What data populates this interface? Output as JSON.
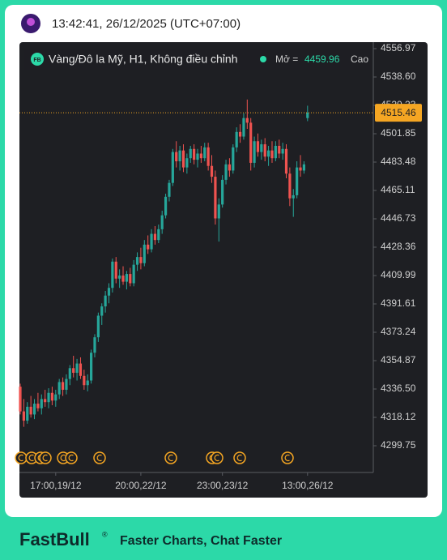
{
  "header": {
    "time": "13:42:41, 26/12/2025 (UTC+07:00)"
  },
  "legend": {
    "badge": "FB",
    "symbol": "Vàng/Đô la Mỹ, H1, Không điều chỉnh",
    "open_label": "Mở =",
    "open_value": "4459.96",
    "high_label": "Cao"
  },
  "footer": {
    "brand": "FastBull",
    "brand_mark": "®",
    "slogan": "Faster Charts, Chat Faster"
  },
  "chart_data": {
    "type": "candlestick",
    "up_color": "#26a69a",
    "down_color": "#ef5350",
    "last_color": "#f5a623",
    "categories": [
      null,
      null,
      null,
      null,
      null,
      null,
      null,
      null,
      null,
      null,
      "17:00,19/12",
      null,
      null,
      null,
      null,
      null,
      null,
      null,
      null,
      null,
      null,
      null,
      null,
      null,
      null,
      null,
      null,
      null,
      null,
      null,
      null,
      null,
      null,
      null,
      "20:00,22/12",
      null,
      null,
      null,
      null,
      null,
      null,
      null,
      null,
      null,
      null,
      null,
      null,
      null,
      null,
      null,
      null,
      null,
      null,
      null,
      null,
      null,
      null,
      "23:00,23/12",
      null,
      null,
      null,
      null,
      null,
      null,
      null,
      null,
      null,
      null,
      null,
      null,
      null,
      null,
      null,
      null,
      null,
      null,
      null,
      null,
      null,
      null,
      null,
      "13:00,26/12"
    ],
    "open": [
      4338,
      4322,
      4316,
      4325,
      4320,
      4327,
      4324,
      4330,
      4328,
      4334,
      4329,
      4333,
      4341,
      4336,
      4343,
      4350,
      4347,
      4353,
      4345,
      4339,
      4342,
      4360,
      4370,
      4384,
      4390,
      4397,
      4402,
      4419,
      4408,
      4410,
      4406,
      4411,
      4405,
      4417,
      4422,
      4418,
      4430,
      4427,
      4437,
      4433,
      4440,
      4449,
      4461,
      4470,
      4490,
      4484,
      4491,
      4480,
      4486,
      4492,
      4485,
      4489,
      4486,
      4493,
      4481,
      4474,
      4447,
      4456,
      4472,
      4482,
      4478,
      4493,
      4503,
      4500,
      4512,
      4509,
      4483,
      4497,
      4490,
      4495,
      4487,
      4491,
      4486,
      4494,
      4489,
      4492,
      4476,
      4460,
      4462,
      4480,
      4478,
      4512
    ],
    "high": [
      4340,
      4330,
      4328,
      4332,
      4330,
      4334,
      4333,
      4336,
      4337,
      4338,
      4336,
      4343,
      4344,
      4346,
      4352,
      4358,
      4356,
      4357,
      4349,
      4346,
      4362,
      4372,
      4386,
      4392,
      4400,
      4405,
      4421,
      4422,
      4414,
      4416,
      4413,
      4415,
      4420,
      4425,
      4428,
      4433,
      4436,
      4440,
      4442,
      4443,
      4452,
      4463,
      4472,
      4492,
      4497,
      4494,
      4495,
      4489,
      4494,
      4495,
      4492,
      4494,
      4496,
      4496,
      4488,
      4478,
      4460,
      4475,
      4485,
      4486,
      4495,
      4506,
      4508,
      4515,
      4524,
      4512,
      4500,
      4502,
      4498,
      4499,
      4494,
      4497,
      4497,
      4498,
      4496,
      4495,
      4480,
      4466,
      4484,
      4488,
      4484,
      4520
    ],
    "low": [
      4320,
      4312,
      4314,
      4318,
      4317,
      4322,
      4320,
      4325,
      4324,
      4326,
      4325,
      4330,
      4332,
      4333,
      4339,
      4344,
      4342,
      4343,
      4336,
      4335,
      4340,
      4357,
      4367,
      4378,
      4386,
      4392,
      4399,
      4405,
      4402,
      4404,
      4401,
      4403,
      4403,
      4413,
      4414,
      4416,
      4424,
      4425,
      4430,
      4431,
      4437,
      4447,
      4458,
      4468,
      4480,
      4478,
      4477,
      4476,
      4483,
      4482,
      4480,
      4483,
      4484,
      4478,
      4470,
      4443,
      4432,
      4454,
      4469,
      4474,
      4476,
      4490,
      4496,
      4498,
      4505,
      4478,
      4480,
      4487,
      4485,
      4484,
      4481,
      4483,
      4484,
      4486,
      4485,
      4473,
      4455,
      4448,
      4460,
      4474,
      4476,
      4510
    ],
    "close": [
      4322,
      4316,
      4325,
      4320,
      4327,
      4324,
      4330,
      4328,
      4334,
      4329,
      4333,
      4341,
      4336,
      4343,
      4350,
      4347,
      4353,
      4345,
      4339,
      4342,
      4360,
      4370,
      4384,
      4390,
      4397,
      4402,
      4419,
      4408,
      4410,
      4406,
      4411,
      4405,
      4417,
      4422,
      4418,
      4430,
      4427,
      4437,
      4433,
      4440,
      4449,
      4461,
      4470,
      4490,
      4484,
      4491,
      4480,
      4486,
      4492,
      4485,
      4489,
      4486,
      4493,
      4481,
      4474,
      4447,
      4456,
      4472,
      4482,
      4478,
      4493,
      4503,
      4500,
      4512,
      4509,
      4483,
      4497,
      4490,
      4495,
      4487,
      4491,
      4486,
      4494,
      4489,
      4492,
      4476,
      4460,
      4462,
      4480,
      4478,
      4482,
      4515.46
    ],
    "ylim": [
      4282.43,
      4561.17
    ],
    "yticks": [
      4556.97,
      {
        "value": 4538.6,
        "label": "4538.60"
      },
      4520.23,
      4501.85,
      4483.48,
      4465.11,
      4446.73,
      4428.36,
      4409.99,
      4391.61,
      4373.24,
      4354.87,
      {
        "value": 4336.5,
        "label": "4336.50"
      },
      4318.12,
      {
        "value": 4299.75,
        "label": "4299.75"
      }
    ]
  }
}
